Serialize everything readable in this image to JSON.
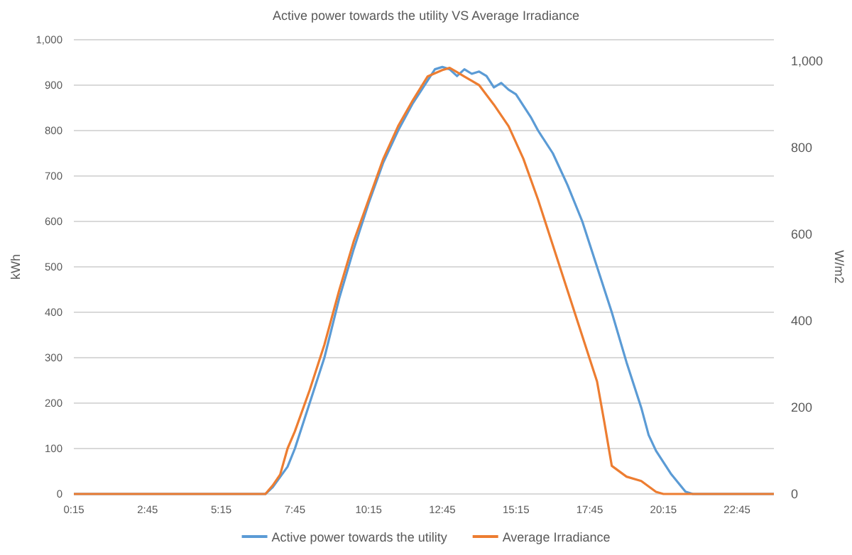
{
  "chart_data": {
    "type": "line",
    "title": "Active power towards the utility VS Average Irradiance",
    "ylabel": "kWh",
    "y2label": "W/m2",
    "xlim": [
      0.25,
      24
    ],
    "xticks": [
      {
        "value": 0.25,
        "label": "0:15"
      },
      {
        "value": 2.75,
        "label": "2:45"
      },
      {
        "value": 5.25,
        "label": "5:15"
      },
      {
        "value": 7.75,
        "label": "7:45"
      },
      {
        "value": 10.25,
        "label": "10:15"
      },
      {
        "value": 12.75,
        "label": "12:45"
      },
      {
        "value": 15.25,
        "label": "15:15"
      },
      {
        "value": 17.75,
        "label": "17:45"
      },
      {
        "value": 20.25,
        "label": "20:15"
      },
      {
        "value": 22.75,
        "label": "22:45"
      }
    ],
    "ylim": [
      0,
      1000
    ],
    "yticks": [
      0,
      100,
      200,
      300,
      400,
      500,
      600,
      700,
      800,
      900,
      {
        "value": 1000,
        "label": "1,000"
      }
    ],
    "y2lim": [
      0,
      1050
    ],
    "y2ticks": [
      0,
      200,
      400,
      600,
      800,
      {
        "value": 1000,
        "label": "1,000"
      }
    ],
    "grid": "y",
    "legend": "bottom",
    "marker": "none",
    "series": [
      {
        "name": "Active power towards the utility",
        "color": "#5b9bd5",
        "x": [
          0.25,
          6.5,
          6.75,
          7,
          7.5,
          7.75,
          8.25,
          8.75,
          9.25,
          9.75,
          10.25,
          10.75,
          11.25,
          11.75,
          12.25,
          12.5,
          12.75,
          13,
          13.25,
          13.5,
          13.75,
          14,
          14.25,
          14.5,
          14.75,
          15,
          15.25,
          15.5,
          15.75,
          16,
          16.5,
          17,
          17.5,
          18,
          18.5,
          19,
          19.5,
          19.75,
          20,
          20.5,
          20.75,
          21,
          21.25,
          24
        ],
        "values": [
          0,
          0,
          0,
          15,
          60,
          100,
          200,
          300,
          430,
          540,
          640,
          730,
          800,
          860,
          910,
          935,
          940,
          935,
          920,
          935,
          925,
          930,
          920,
          895,
          905,
          890,
          880,
          855,
          830,
          800,
          750,
          680,
          600,
          500,
          400,
          290,
          190,
          130,
          95,
          45,
          25,
          5,
          0,
          0
        ]
      },
      {
        "name": "Average Irradiance",
        "color": "#ed7d31",
        "axis": "y2",
        "x": [
          0.25,
          6.5,
          6.75,
          7,
          7.25,
          7.5,
          7.75,
          8.25,
          8.75,
          9.25,
          9.75,
          10.25,
          10.75,
          11.25,
          11.75,
          12.25,
          12.75,
          13,
          13.25,
          13.5,
          13.75,
          14,
          14.5,
          15,
          15.5,
          16,
          16.5,
          17,
          17.5,
          18,
          18.25,
          18.5,
          19,
          19.5,
          20,
          20.25,
          24
        ],
        "values": [
          0,
          0,
          0,
          20,
          45,
          105,
          145,
          240,
          345,
          470,
          585,
          680,
          775,
          850,
          910,
          965,
          980,
          985,
          975,
          965,
          955,
          945,
          900,
          850,
          775,
          680,
          575,
          470,
          365,
          260,
          165,
          65,
          40,
          30,
          5,
          0,
          0
        ]
      }
    ]
  }
}
